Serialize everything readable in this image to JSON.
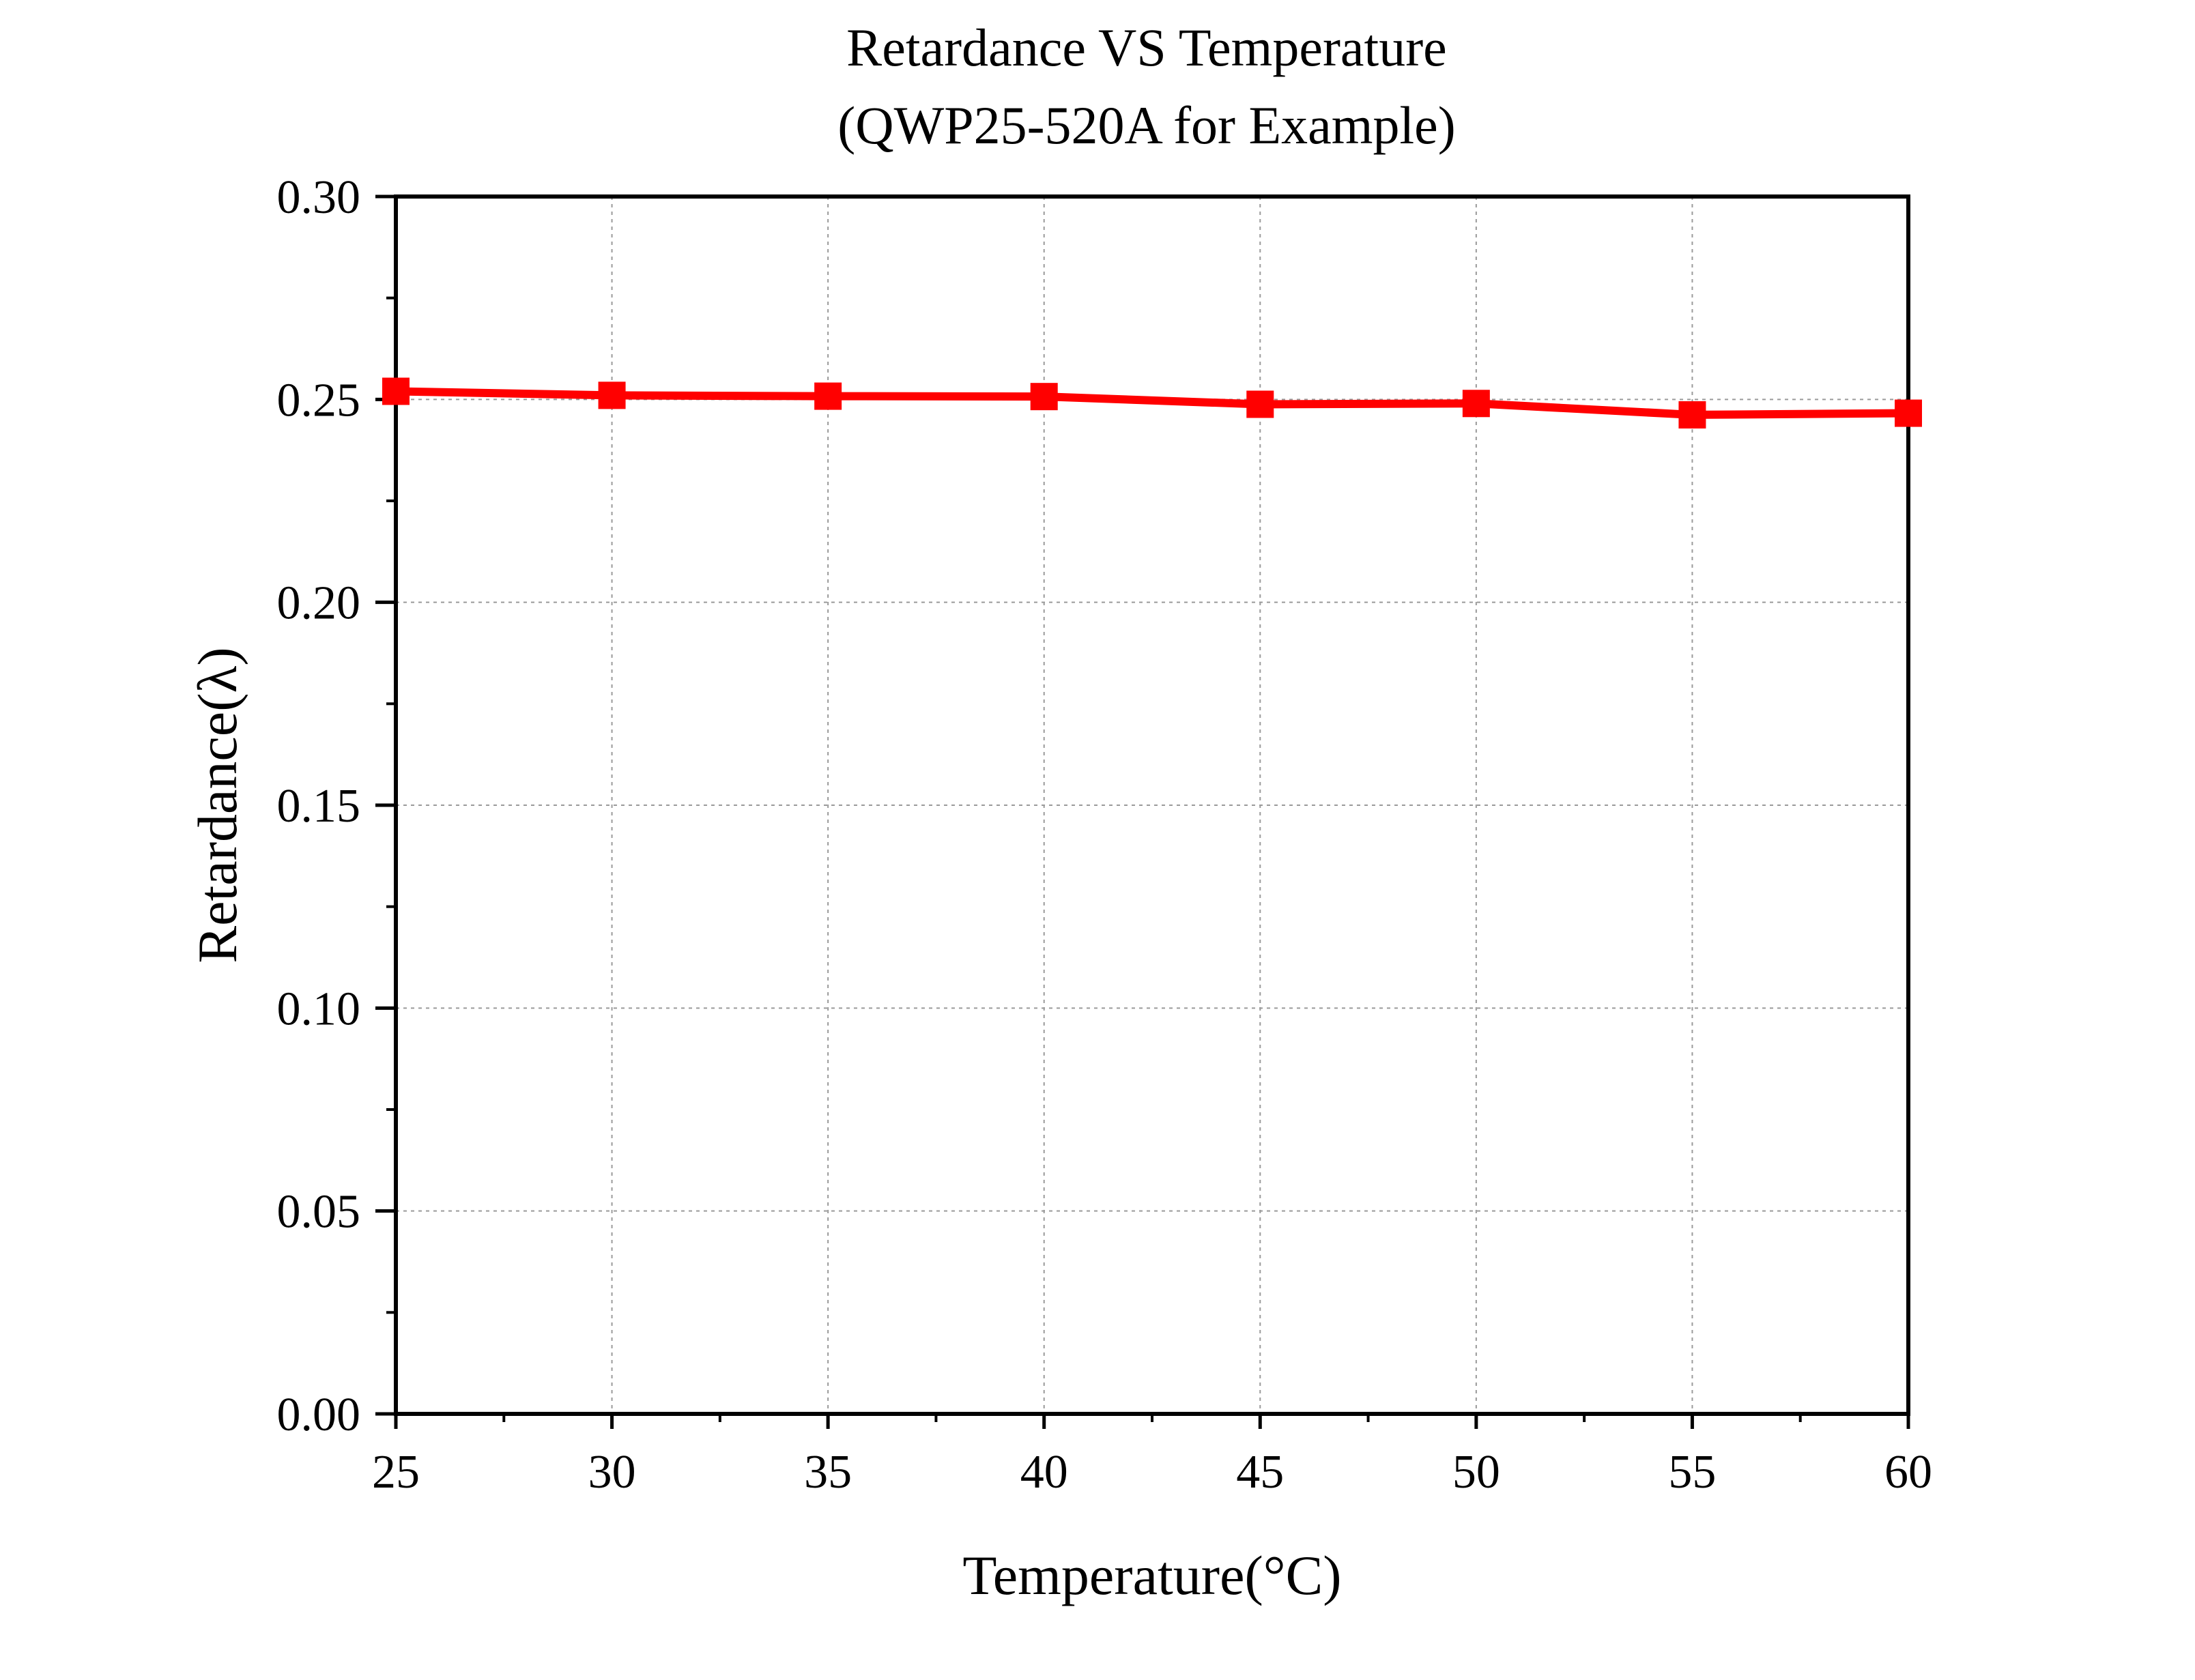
{
  "chart_data": {
    "type": "line",
    "title": "Retardance VS Temperature",
    "subtitle": "(QWP25-520A for Example)",
    "xlabel": "Temperature(°C)",
    "ylabel": "Retardance(λ)",
    "x": [
      25,
      30,
      35,
      40,
      45,
      50,
      55,
      60
    ],
    "series": [
      {
        "values": [
          0.252,
          0.251,
          0.2508,
          0.2507,
          0.2488,
          0.249,
          0.2462,
          0.2466
        ],
        "color": "#ff0000",
        "marker": "square"
      }
    ],
    "xlim": [
      25,
      60
    ],
    "ylim": [
      0,
      0.3
    ],
    "x_ticks": [
      "25",
      "30",
      "35",
      "40",
      "45",
      "50",
      "55",
      "60"
    ],
    "y_ticks": [
      "0.00",
      "0.05",
      "0.10",
      "0.15",
      "0.20",
      "0.25",
      "0.30"
    ],
    "grid": true,
    "legend": "none"
  }
}
